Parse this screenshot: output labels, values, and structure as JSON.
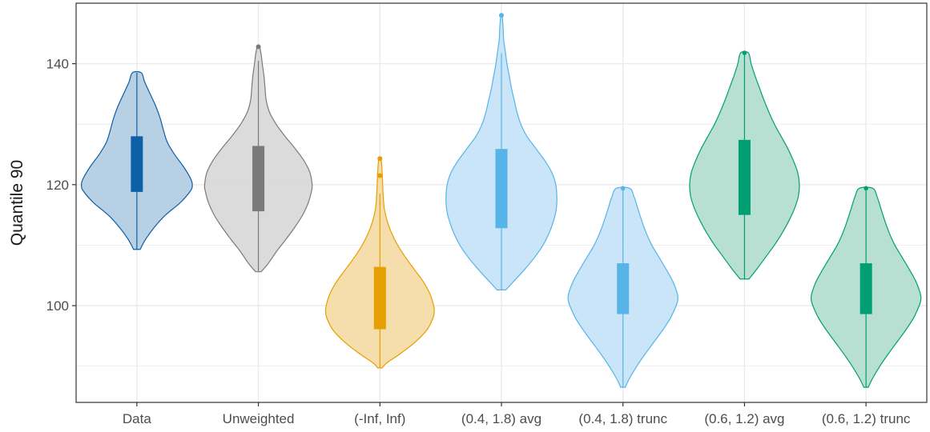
{
  "chart_data": {
    "type": "violin",
    "title": "",
    "xlabel": "",
    "ylabel": "Quantile 90",
    "ylim": [
      84,
      150
    ],
    "yticks": [
      100,
      120,
      140
    ],
    "grid": true,
    "legend": "none",
    "categories": [
      "Data",
      "Unweighted",
      "(-Inf, Inf)",
      "(0.4, 1.8) avg",
      "(0.4, 1.8) trunc",
      "(0.6, 1.2) avg",
      "(0.6, 1.2) trunc"
    ],
    "series": [
      {
        "category": "Data",
        "color": "#0d5fa6",
        "fill": "#b3cde3",
        "min": 109.3,
        "max": 138.5,
        "q1": 118.8,
        "q3": 128.0,
        "whisker_low": 109.3,
        "whisker_high": 138.5,
        "outliers": [],
        "density": [
          [
            109.3,
            0.06
          ],
          [
            111,
            0.16
          ],
          [
            113,
            0.32
          ],
          [
            115,
            0.52
          ],
          [
            117,
            0.78
          ],
          [
            119,
            0.97
          ],
          [
            120,
            1.0
          ],
          [
            121,
            0.97
          ],
          [
            123,
            0.84
          ],
          [
            125,
            0.68
          ],
          [
            127,
            0.55
          ],
          [
            129,
            0.48
          ],
          [
            131,
            0.42
          ],
          [
            133,
            0.34
          ],
          [
            135,
            0.24
          ],
          [
            137,
            0.14
          ],
          [
            138.5,
            0.08
          ]
        ]
      },
      {
        "category": "Unweighted",
        "color": "#7a7a7a",
        "fill": "#d9d9d9",
        "min": 105.6,
        "max": 142.8,
        "q1": 115.6,
        "q3": 126.4,
        "whisker_low": 105.6,
        "whisker_high": 140.5,
        "outliers": [
          142.8
        ],
        "density": [
          [
            105.6,
            0.05
          ],
          [
            107,
            0.18
          ],
          [
            109,
            0.33
          ],
          [
            111,
            0.5
          ],
          [
            113,
            0.66
          ],
          [
            115,
            0.8
          ],
          [
            117,
            0.9
          ],
          [
            119,
            0.96
          ],
          [
            120,
            0.97
          ],
          [
            122,
            0.93
          ],
          [
            124,
            0.82
          ],
          [
            126,
            0.66
          ],
          [
            128,
            0.48
          ],
          [
            130,
            0.32
          ],
          [
            132,
            0.2
          ],
          [
            134,
            0.14
          ],
          [
            136,
            0.12
          ],
          [
            138,
            0.1
          ],
          [
            140,
            0.07
          ],
          [
            141.5,
            0.05
          ],
          [
            142.8,
            0.02
          ]
        ]
      },
      {
        "category": "(-Inf, Inf)",
        "color": "#e69f00",
        "fill": "#f5dba8",
        "min": 89.7,
        "max": 124.3,
        "q1": 96.1,
        "q3": 106.4,
        "whisker_low": 89.7,
        "whisker_high": 118.5,
        "outliers": [
          121.5,
          124.3
        ],
        "density": [
          [
            89.7,
            0.04
          ],
          [
            90.5,
            0.12
          ],
          [
            92,
            0.36
          ],
          [
            94,
            0.64
          ],
          [
            96,
            0.85
          ],
          [
            98,
            0.96
          ],
          [
            99,
            0.98
          ],
          [
            100,
            0.97
          ],
          [
            102,
            0.9
          ],
          [
            104,
            0.78
          ],
          [
            106,
            0.62
          ],
          [
            108,
            0.46
          ],
          [
            110,
            0.32
          ],
          [
            112,
            0.21
          ],
          [
            114,
            0.13
          ],
          [
            116,
            0.08
          ],
          [
            118,
            0.06
          ],
          [
            120,
            0.05
          ],
          [
            122,
            0.04
          ],
          [
            124.3,
            0.02
          ]
        ]
      },
      {
        "category": "(0.4, 1.8) avg",
        "color": "#56b4e9",
        "fill": "#c6e4f7",
        "min": 102.6,
        "max": 148.0,
        "q1": 112.8,
        "q3": 125.9,
        "whisker_low": 102.6,
        "whisker_high": 141.7,
        "outliers": [
          148.0
        ],
        "density": [
          [
            102.6,
            0.08
          ],
          [
            104,
            0.22
          ],
          [
            106,
            0.42
          ],
          [
            108,
            0.6
          ],
          [
            110,
            0.75
          ],
          [
            112,
            0.86
          ],
          [
            114,
            0.94
          ],
          [
            116,
            0.99
          ],
          [
            118,
            1.0
          ],
          [
            120,
            0.98
          ],
          [
            122,
            0.91
          ],
          [
            124,
            0.78
          ],
          [
            126,
            0.62
          ],
          [
            128,
            0.46
          ],
          [
            130,
            0.35
          ],
          [
            132,
            0.28
          ],
          [
            134,
            0.23
          ],
          [
            136,
            0.18
          ],
          [
            138,
            0.14
          ],
          [
            140,
            0.1
          ],
          [
            142,
            0.07
          ],
          [
            144,
            0.04
          ],
          [
            146,
            0.03
          ],
          [
            148,
            0.01
          ]
        ]
      },
      {
        "category": "(0.4, 1.8) trunc",
        "color": "#56b4e9",
        "fill": "#c6e4f7",
        "min": 86.5,
        "max": 119.4,
        "q1": 98.6,
        "q3": 107.0,
        "whisker_low": 86.5,
        "whisker_high": 119.4,
        "outliers": [],
        "density": [
          [
            86.5,
            0.04
          ],
          [
            88,
            0.12
          ],
          [
            90,
            0.25
          ],
          [
            92,
            0.4
          ],
          [
            94,
            0.56
          ],
          [
            96,
            0.72
          ],
          [
            98,
            0.86
          ],
          [
            100,
            0.96
          ],
          [
            101,
            0.99
          ],
          [
            102,
            0.98
          ],
          [
            104,
            0.9
          ],
          [
            106,
            0.78
          ],
          [
            108,
            0.65
          ],
          [
            110,
            0.52
          ],
          [
            112,
            0.42
          ],
          [
            114,
            0.34
          ],
          [
            116,
            0.27
          ],
          [
            118,
            0.2
          ],
          [
            119.4,
            0.12
          ]
        ]
      },
      {
        "category": "(0.6, 1.2) avg",
        "color": "#009e73",
        "fill": "#b3ded0",
        "min": 104.4,
        "max": 141.8,
        "q1": 115.0,
        "q3": 127.4,
        "whisker_low": 104.4,
        "whisker_high": 141.8,
        "outliers": [],
        "density": [
          [
            104.4,
            0.08
          ],
          [
            106,
            0.22
          ],
          [
            108,
            0.38
          ],
          [
            110,
            0.54
          ],
          [
            112,
            0.68
          ],
          [
            114,
            0.8
          ],
          [
            116,
            0.9
          ],
          [
            118,
            0.97
          ],
          [
            120,
            0.99
          ],
          [
            122,
            0.96
          ],
          [
            124,
            0.88
          ],
          [
            126,
            0.78
          ],
          [
            128,
            0.66
          ],
          [
            130,
            0.54
          ],
          [
            132,
            0.44
          ],
          [
            134,
            0.35
          ],
          [
            136,
            0.27
          ],
          [
            138,
            0.19
          ],
          [
            140,
            0.12
          ],
          [
            141.8,
            0.07
          ]
        ]
      },
      {
        "category": "(0.6, 1.2) trunc",
        "color": "#009e73",
        "fill": "#b3ded0",
        "min": 86.5,
        "max": 119.4,
        "q1": 98.6,
        "q3": 107.0,
        "whisker_low": 86.5,
        "whisker_high": 119.4,
        "outliers": [],
        "density": [
          [
            86.5,
            0.04
          ],
          [
            88,
            0.12
          ],
          [
            90,
            0.25
          ],
          [
            92,
            0.4
          ],
          [
            94,
            0.56
          ],
          [
            96,
            0.72
          ],
          [
            98,
            0.86
          ],
          [
            100,
            0.96
          ],
          [
            101,
            0.99
          ],
          [
            102,
            0.98
          ],
          [
            104,
            0.9
          ],
          [
            106,
            0.78
          ],
          [
            108,
            0.65
          ],
          [
            110,
            0.52
          ],
          [
            112,
            0.42
          ],
          [
            114,
            0.34
          ],
          [
            116,
            0.27
          ],
          [
            118,
            0.2
          ],
          [
            119.4,
            0.12
          ]
        ]
      }
    ]
  }
}
